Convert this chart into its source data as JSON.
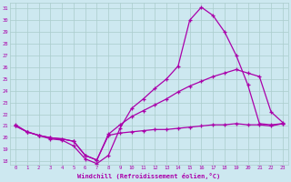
{
  "xlabel": "Windchill (Refroidissement éolien,°C)",
  "bg_color": "#cde8f0",
  "line_color": "#aa00aa",
  "grid_color": "#aacccc",
  "xlim": [
    -0.5,
    23.5
  ],
  "ylim": [
    17.7,
    31.5
  ],
  "xticks": [
    0,
    1,
    2,
    3,
    4,
    5,
    6,
    7,
    8,
    9,
    10,
    11,
    12,
    13,
    14,
    15,
    16,
    17,
    18,
    19,
    20,
    21,
    22,
    23
  ],
  "yticks": [
    18,
    19,
    20,
    21,
    22,
    23,
    24,
    25,
    26,
    27,
    28,
    29,
    30,
    31
  ],
  "series": [
    {
      "x": [
        0,
        1,
        2,
        3,
        4,
        5,
        6,
        7,
        8,
        9,
        10,
        11,
        12,
        13,
        14,
        15,
        16,
        17,
        18,
        19,
        20,
        21,
        22,
        23
      ],
      "y": [
        21.0,
        20.5,
        20.2,
        19.9,
        19.8,
        19.3,
        18.2,
        17.8,
        18.5,
        20.8,
        22.5,
        23.3,
        24.2,
        25.0,
        26.1,
        30.0,
        31.1,
        30.4,
        29.0,
        27.0,
        24.5,
        21.2,
        21.1,
        21.2
      ]
    },
    {
      "x": [
        0,
        1,
        2,
        3,
        4,
        5,
        6,
        7,
        8,
        9,
        10,
        11,
        12,
        13,
        14,
        15,
        16,
        17,
        18,
        19,
        20,
        21,
        22,
        23
      ],
      "y": [
        21.0,
        20.5,
        20.2,
        20.0,
        19.9,
        19.7,
        18.5,
        18.1,
        20.3,
        21.1,
        21.8,
        22.3,
        22.8,
        23.3,
        23.9,
        24.4,
        24.8,
        25.2,
        25.5,
        25.8,
        25.5,
        25.2,
        22.2,
        21.3
      ]
    },
    {
      "x": [
        0,
        1,
        2,
        3,
        4,
        5,
        6,
        7,
        8,
        9,
        10,
        11,
        12,
        13,
        14,
        15,
        16,
        17,
        18,
        19,
        20,
        21,
        22,
        23
      ],
      "y": [
        21.1,
        20.5,
        20.2,
        20.0,
        19.9,
        19.7,
        18.5,
        18.1,
        20.2,
        20.4,
        20.5,
        20.6,
        20.7,
        20.7,
        20.8,
        20.9,
        21.0,
        21.1,
        21.1,
        21.2,
        21.1,
        21.1,
        21.0,
        21.2
      ]
    }
  ]
}
